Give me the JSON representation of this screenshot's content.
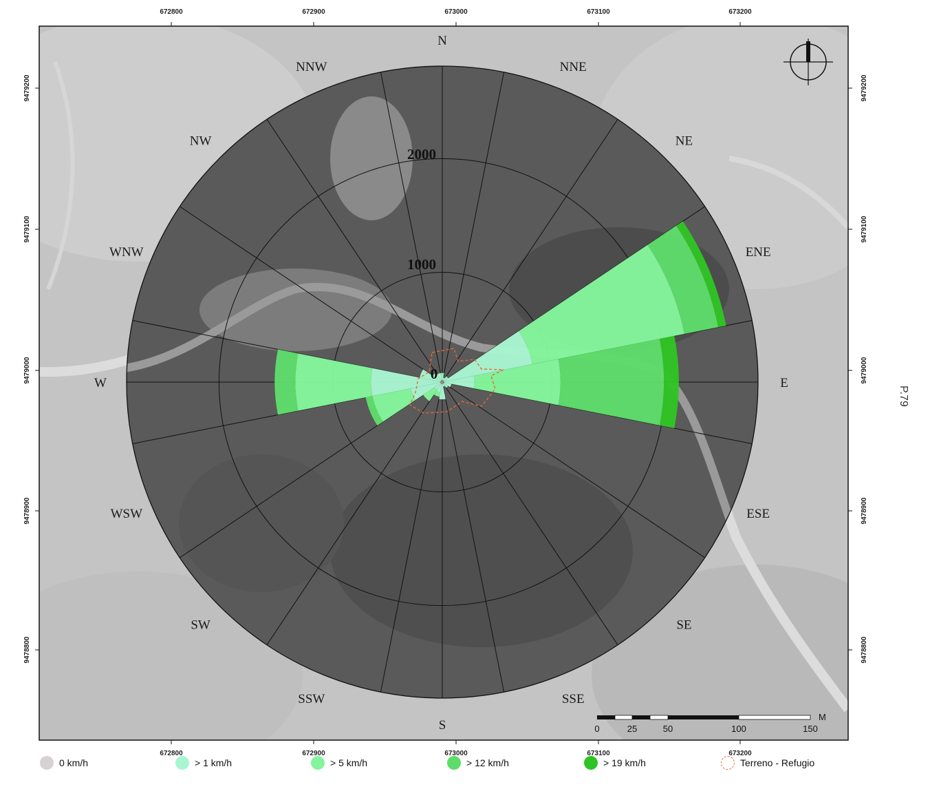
{
  "x_coords": [
    "672800",
    "672900",
    "673000",
    "673100",
    "673200"
  ],
  "y_coords": [
    "9479200",
    "9479100",
    "9479000",
    "9478900",
    "9478800"
  ],
  "chart_data": {
    "type": "wind-rose",
    "directions": [
      "N",
      "NNE",
      "NE",
      "ENE",
      "E",
      "ESE",
      "SE",
      "SSE",
      "S",
      "SSW",
      "SW",
      "WSW",
      "W",
      "WNW",
      "NW",
      "NNW"
    ],
    "rings": [
      "0",
      "1000",
      "2000"
    ],
    "rmax": 2750,
    "speed_bins": [
      {
        "label": "0 km/h",
        "color": "#d6d2d2"
      },
      {
        "label": "> 1 km/h",
        "color": "#a8f5d2"
      },
      {
        "label": "> 5 km/h",
        "color": "#84f59c"
      },
      {
        "label": "> 12 km/h",
        "color": "#5edc6a"
      },
      {
        "label": "> 19 km/h",
        "color": "#2fc425"
      }
    ],
    "series": [
      {
        "dir": "N",
        "cum": [
          0,
          60,
          80,
          0,
          0
        ]
      },
      {
        "dir": "NNE",
        "cum": [
          0,
          40,
          0,
          0,
          0
        ]
      },
      {
        "dir": "NE",
        "cum": [
          0,
          60,
          0,
          0,
          0
        ]
      },
      {
        "dir": "ENE",
        "cum": [
          0,
          800,
          2150,
          2450,
          2520
        ]
      },
      {
        "dir": "E",
        "cum": [
          0,
          280,
          1030,
          1930,
          2060
        ]
      },
      {
        "dir": "ESE",
        "cum": [
          0,
          80,
          0,
          0,
          0
        ]
      },
      {
        "dir": "SE",
        "cum": [
          0,
          60,
          0,
          0,
          0
        ]
      },
      {
        "dir": "SSE",
        "cum": [
          0,
          40,
          0,
          0,
          0
        ]
      },
      {
        "dir": "S",
        "cum": [
          0,
          150,
          0,
          0,
          0
        ]
      },
      {
        "dir": "SSW",
        "cum": [
          0,
          90,
          130,
          0,
          0
        ]
      },
      {
        "dir": "SW",
        "cum": [
          0,
          80,
          200,
          0,
          0
        ]
      },
      {
        "dir": "WSW",
        "cum": [
          0,
          280,
          620,
          680,
          0
        ]
      },
      {
        "dir": "W",
        "cum": [
          0,
          620,
          1280,
          1460,
          0
        ]
      },
      {
        "dir": "WNW",
        "cum": [
          0,
          200,
          0,
          0,
          0
        ]
      },
      {
        "dir": "NW",
        "cum": [
          0,
          100,
          0,
          0,
          0
        ]
      },
      {
        "dir": "NNW",
        "cum": [
          0,
          80,
          0,
          0,
          0
        ]
      }
    ]
  },
  "scalebar": {
    "unit": "M",
    "ticks": [
      "0",
      "25",
      "50",
      "100",
      "150"
    ]
  },
  "legend_terrain": "Terreno - Refugio",
  "page_label": "P.79"
}
